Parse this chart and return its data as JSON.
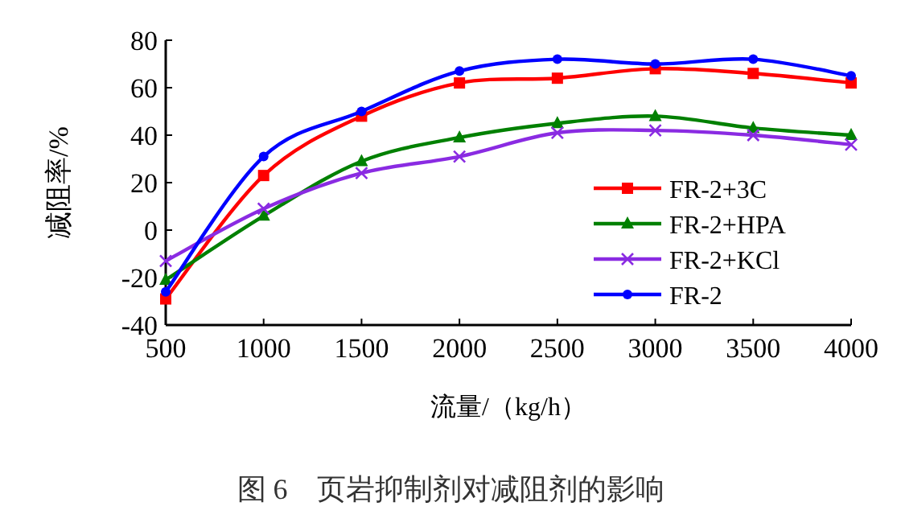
{
  "chart_data": {
    "type": "line",
    "title": "图 6　页岩抑制剂对减阻剂的影响",
    "xlabel": "流量/（kg/h）",
    "ylabel": "减阻率/%",
    "x": [
      500,
      1000,
      1500,
      2000,
      2500,
      3000,
      3500,
      4000
    ],
    "series": [
      {
        "name": "FR-2+3C",
        "color": "#ff0000",
        "marker": "square",
        "values": [
          -29,
          23,
          48,
          62,
          64,
          68,
          66,
          62
        ]
      },
      {
        "name": "FR-2+HPA",
        "color": "#008000",
        "marker": "triangle",
        "values": [
          -21,
          6,
          29,
          39,
          45,
          48,
          43,
          40
        ]
      },
      {
        "name": "FR-2+KCl",
        "color": "#8a2be2",
        "marker": "cross",
        "values": [
          -13,
          9,
          24,
          31,
          41,
          42,
          40,
          36
        ]
      },
      {
        "name": "FR-2",
        "color": "#0000ff",
        "marker": "circle",
        "values": [
          -26,
          31,
          50,
          67,
          72,
          70,
          72,
          65
        ]
      }
    ],
    "xlim": [
      500,
      4000
    ],
    "xticks": [
      500,
      1000,
      1500,
      2000,
      2500,
      3000,
      3500,
      4000
    ],
    "ylim": [
      -40,
      80
    ],
    "yticks": [
      -40,
      -20,
      0,
      20,
      40,
      60,
      80
    ],
    "grid": false,
    "legend": "bottom right"
  }
}
